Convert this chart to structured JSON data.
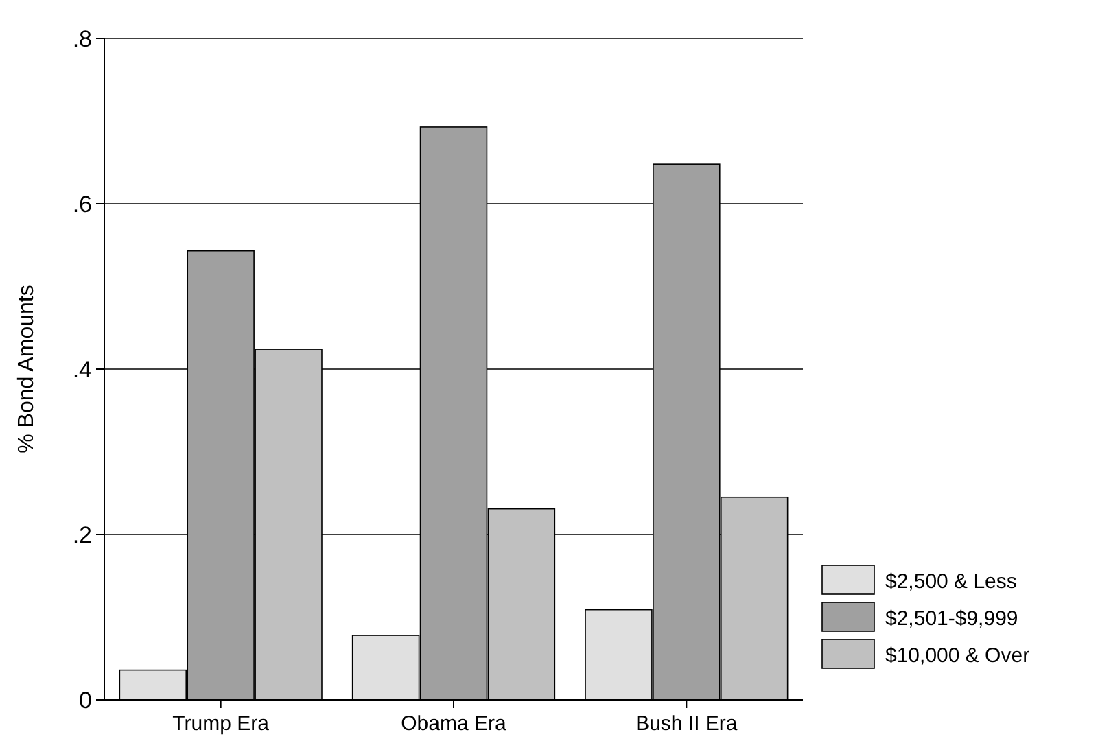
{
  "chart_data": {
    "type": "bar",
    "ylabel": "% Bond Amounts",
    "categories": [
      "Trump Era",
      "Obama Era",
      "Bush II Era"
    ],
    "series": [
      {
        "name": "$2,500 & Less",
        "color": "#e0e0e0",
        "values": [
          0.036,
          0.078,
          0.109
        ]
      },
      {
        "name": "$2,501-$9,999",
        "color": "#a0a0a0",
        "values": [
          0.543,
          0.693,
          0.648
        ]
      },
      {
        "name": "$10,000 & Over",
        "color": "#c0c0c0",
        "values": [
          0.424,
          0.231,
          0.245
        ]
      }
    ],
    "ylim": [
      0,
      0.8
    ],
    "yticks": [
      0,
      {
        "value": 0.2,
        "label": ".2"
      },
      {
        "value": 0.4,
        "label": ".4"
      },
      {
        "value": 0.6,
        "label": ".6"
      },
      {
        "value": 0.8,
        "label": ".8"
      }
    ],
    "grid": "y",
    "legend": "bottom right"
  }
}
